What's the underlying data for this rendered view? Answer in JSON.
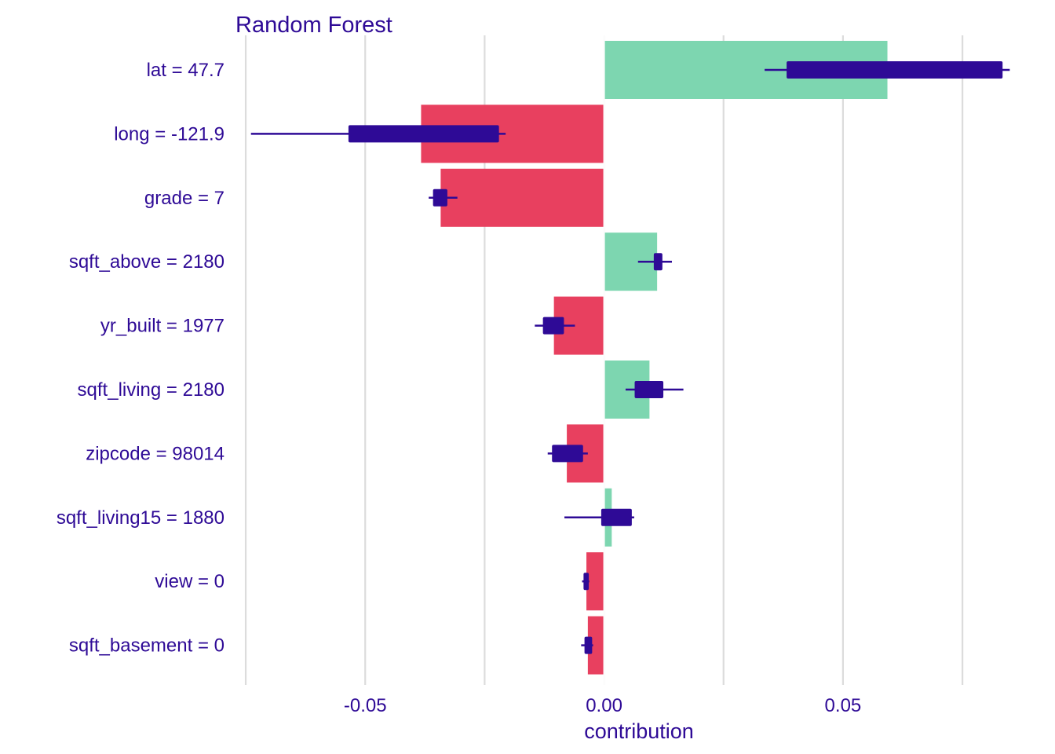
{
  "chart_data": {
    "type": "bar",
    "title": "Random Forest",
    "xlabel": "contribution",
    "ylabel": "",
    "xlim": [
      -0.0755,
      0.0855
    ],
    "xticks": [
      -0.05,
      0.0,
      0.05
    ],
    "xtick_labels": [
      "-0.05",
      "0.00",
      "0.05"
    ],
    "minor_gridlines": [
      -0.075,
      -0.025,
      0.025,
      0.075
    ],
    "grid": true,
    "legend": "none",
    "colors": {
      "positive": "#7dd6b0",
      "negative": "#e8405f",
      "boxplot": "#2e0a96",
      "text": "#2e0a96",
      "grid": "#dcdcdc"
    },
    "categories": [
      "lat = 47.7",
      "long = -121.9",
      "grade = 7",
      "sqft_above = 2180",
      "yr_built = 1977",
      "sqft_living = 2180",
      "zipcode = 98014",
      "sqft_living15 = 1880",
      "view = 0",
      "sqft_basement = 0"
    ],
    "values": [
      0.0593,
      -0.0383,
      -0.0342,
      0.0111,
      -0.0105,
      0.0095,
      -0.0078,
      0.0016,
      -0.0037,
      -0.0034
    ],
    "boxplots": [
      {
        "whisker_low": 0.0336,
        "q1": 0.0382,
        "q3": 0.0834,
        "whisker_high": 0.0849
      },
      {
        "whisker_low": -0.0739,
        "q1": -0.0535,
        "q3": -0.022,
        "whisker_high": -0.0206
      },
      {
        "whisker_low": -0.0367,
        "q1": -0.0358,
        "q3": -0.0328,
        "whisker_high": -0.0307
      },
      {
        "whisker_low": 0.0071,
        "q1": 0.0104,
        "q3": 0.0122,
        "whisker_high": 0.0142
      },
      {
        "whisker_low": -0.0145,
        "q1": -0.0128,
        "q3": -0.0084,
        "whisker_high": -0.0061
      },
      {
        "whisker_low": 0.0045,
        "q1": 0.0064,
        "q3": 0.0124,
        "whisker_high": 0.0166
      },
      {
        "whisker_low": -0.0118,
        "q1": -0.0109,
        "q3": -0.0044,
        "whisker_high": -0.0034
      },
      {
        "whisker_low": -0.0083,
        "q1": -0.0006,
        "q3": 0.0058,
        "whisker_high": 0.0063
      },
      {
        "whisker_low": -0.0046,
        "q1": -0.0043,
        "q3": -0.0032,
        "whisker_high": -0.0031
      },
      {
        "whisker_low": -0.0048,
        "q1": -0.0041,
        "q3": -0.0025,
        "whisker_high": -0.0023
      }
    ]
  }
}
